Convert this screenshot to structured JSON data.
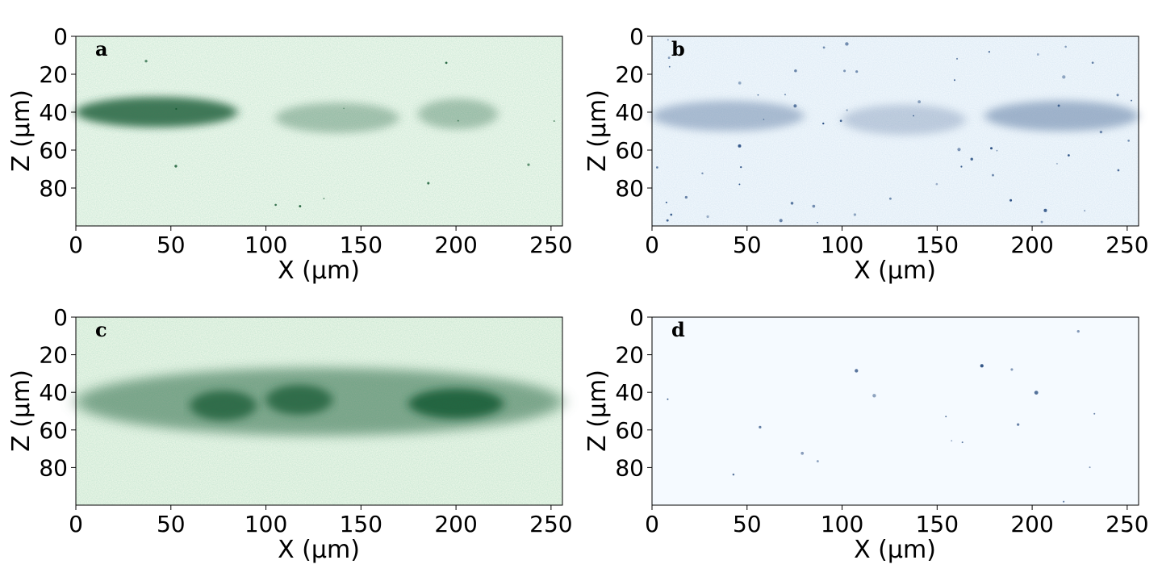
{
  "panels": [
    {
      "letter": "a",
      "colormap": "green",
      "xlabel": "X (μm)",
      "ylabel": "Z (μm)",
      "xlim": [
        0,
        256
      ],
      "ylim": [
        0,
        100
      ],
      "xticks": [
        "0",
        "50",
        "100",
        "150",
        "200",
        "250"
      ],
      "yticks": [
        "0",
        "20",
        "40",
        "60",
        "80"
      ],
      "colors": {
        "max": "#00441b",
        "min": "#f7fcf5"
      },
      "features": [
        {
          "x": [
            0,
            85
          ],
          "z": 40,
          "intensity": 0.85
        },
        {
          "x": [
            105,
            170
          ],
          "z": 43,
          "intensity": 0.35
        },
        {
          "x": [
            180,
            222
          ],
          "z": 41,
          "intensity": 0.35
        }
      ]
    },
    {
      "letter": "b",
      "colormap": "blue",
      "xlabel": "X (μm)",
      "ylabel": "Z (μm)",
      "xlim": [
        0,
        256
      ],
      "ylim": [
        0,
        100
      ],
      "xticks": [
        "0",
        "50",
        "100",
        "150",
        "200",
        "250"
      ],
      "yticks": [
        "0",
        "20",
        "40",
        "60",
        "80"
      ],
      "colors": {
        "max": "#08306b",
        "min": "#f7fbff"
      },
      "features": [
        {
          "x": [
            0,
            80
          ],
          "z": 42,
          "intensity": 0.35
        },
        {
          "x": [
            100,
            165
          ],
          "z": 44,
          "intensity": 0.25
        },
        {
          "x": [
            175,
            256
          ],
          "z": 42,
          "intensity": 0.4
        }
      ]
    },
    {
      "letter": "c",
      "colormap": "green",
      "xlabel": "X (μm)",
      "ylabel": "Z (μm)",
      "xlim": [
        0,
        256
      ],
      "ylim": [
        0,
        100
      ],
      "xticks": [
        "0",
        "50",
        "100",
        "150",
        "200",
        "250"
      ],
      "yticks": [
        "0",
        "20",
        "40",
        "60",
        "80"
      ],
      "colors": {
        "max": "#00441b",
        "min": "#f7fcf5"
      },
      "features": [
        {
          "x": [
            0,
            256
          ],
          "z": 45,
          "intensity": 0.6
        },
        {
          "x": [
            60,
            95
          ],
          "z": 47,
          "intensity": 0.85
        },
        {
          "x": [
            100,
            135
          ],
          "z": 44,
          "intensity": 0.85
        },
        {
          "x": [
            175,
            225
          ],
          "z": 46,
          "intensity": 0.9
        }
      ]
    },
    {
      "letter": "d",
      "colormap": "blue",
      "xlabel": "X (μm)",
      "ylabel": "Z (μm)",
      "xlim": [
        0,
        256
      ],
      "ylim": [
        0,
        100
      ],
      "xticks": [
        "0",
        "50",
        "100",
        "150",
        "200",
        "250"
      ],
      "yticks": [
        "0",
        "20",
        "40",
        "60",
        "80"
      ],
      "colors": {
        "max": "#08306b",
        "min": "#f7fbff"
      },
      "features": []
    }
  ]
}
